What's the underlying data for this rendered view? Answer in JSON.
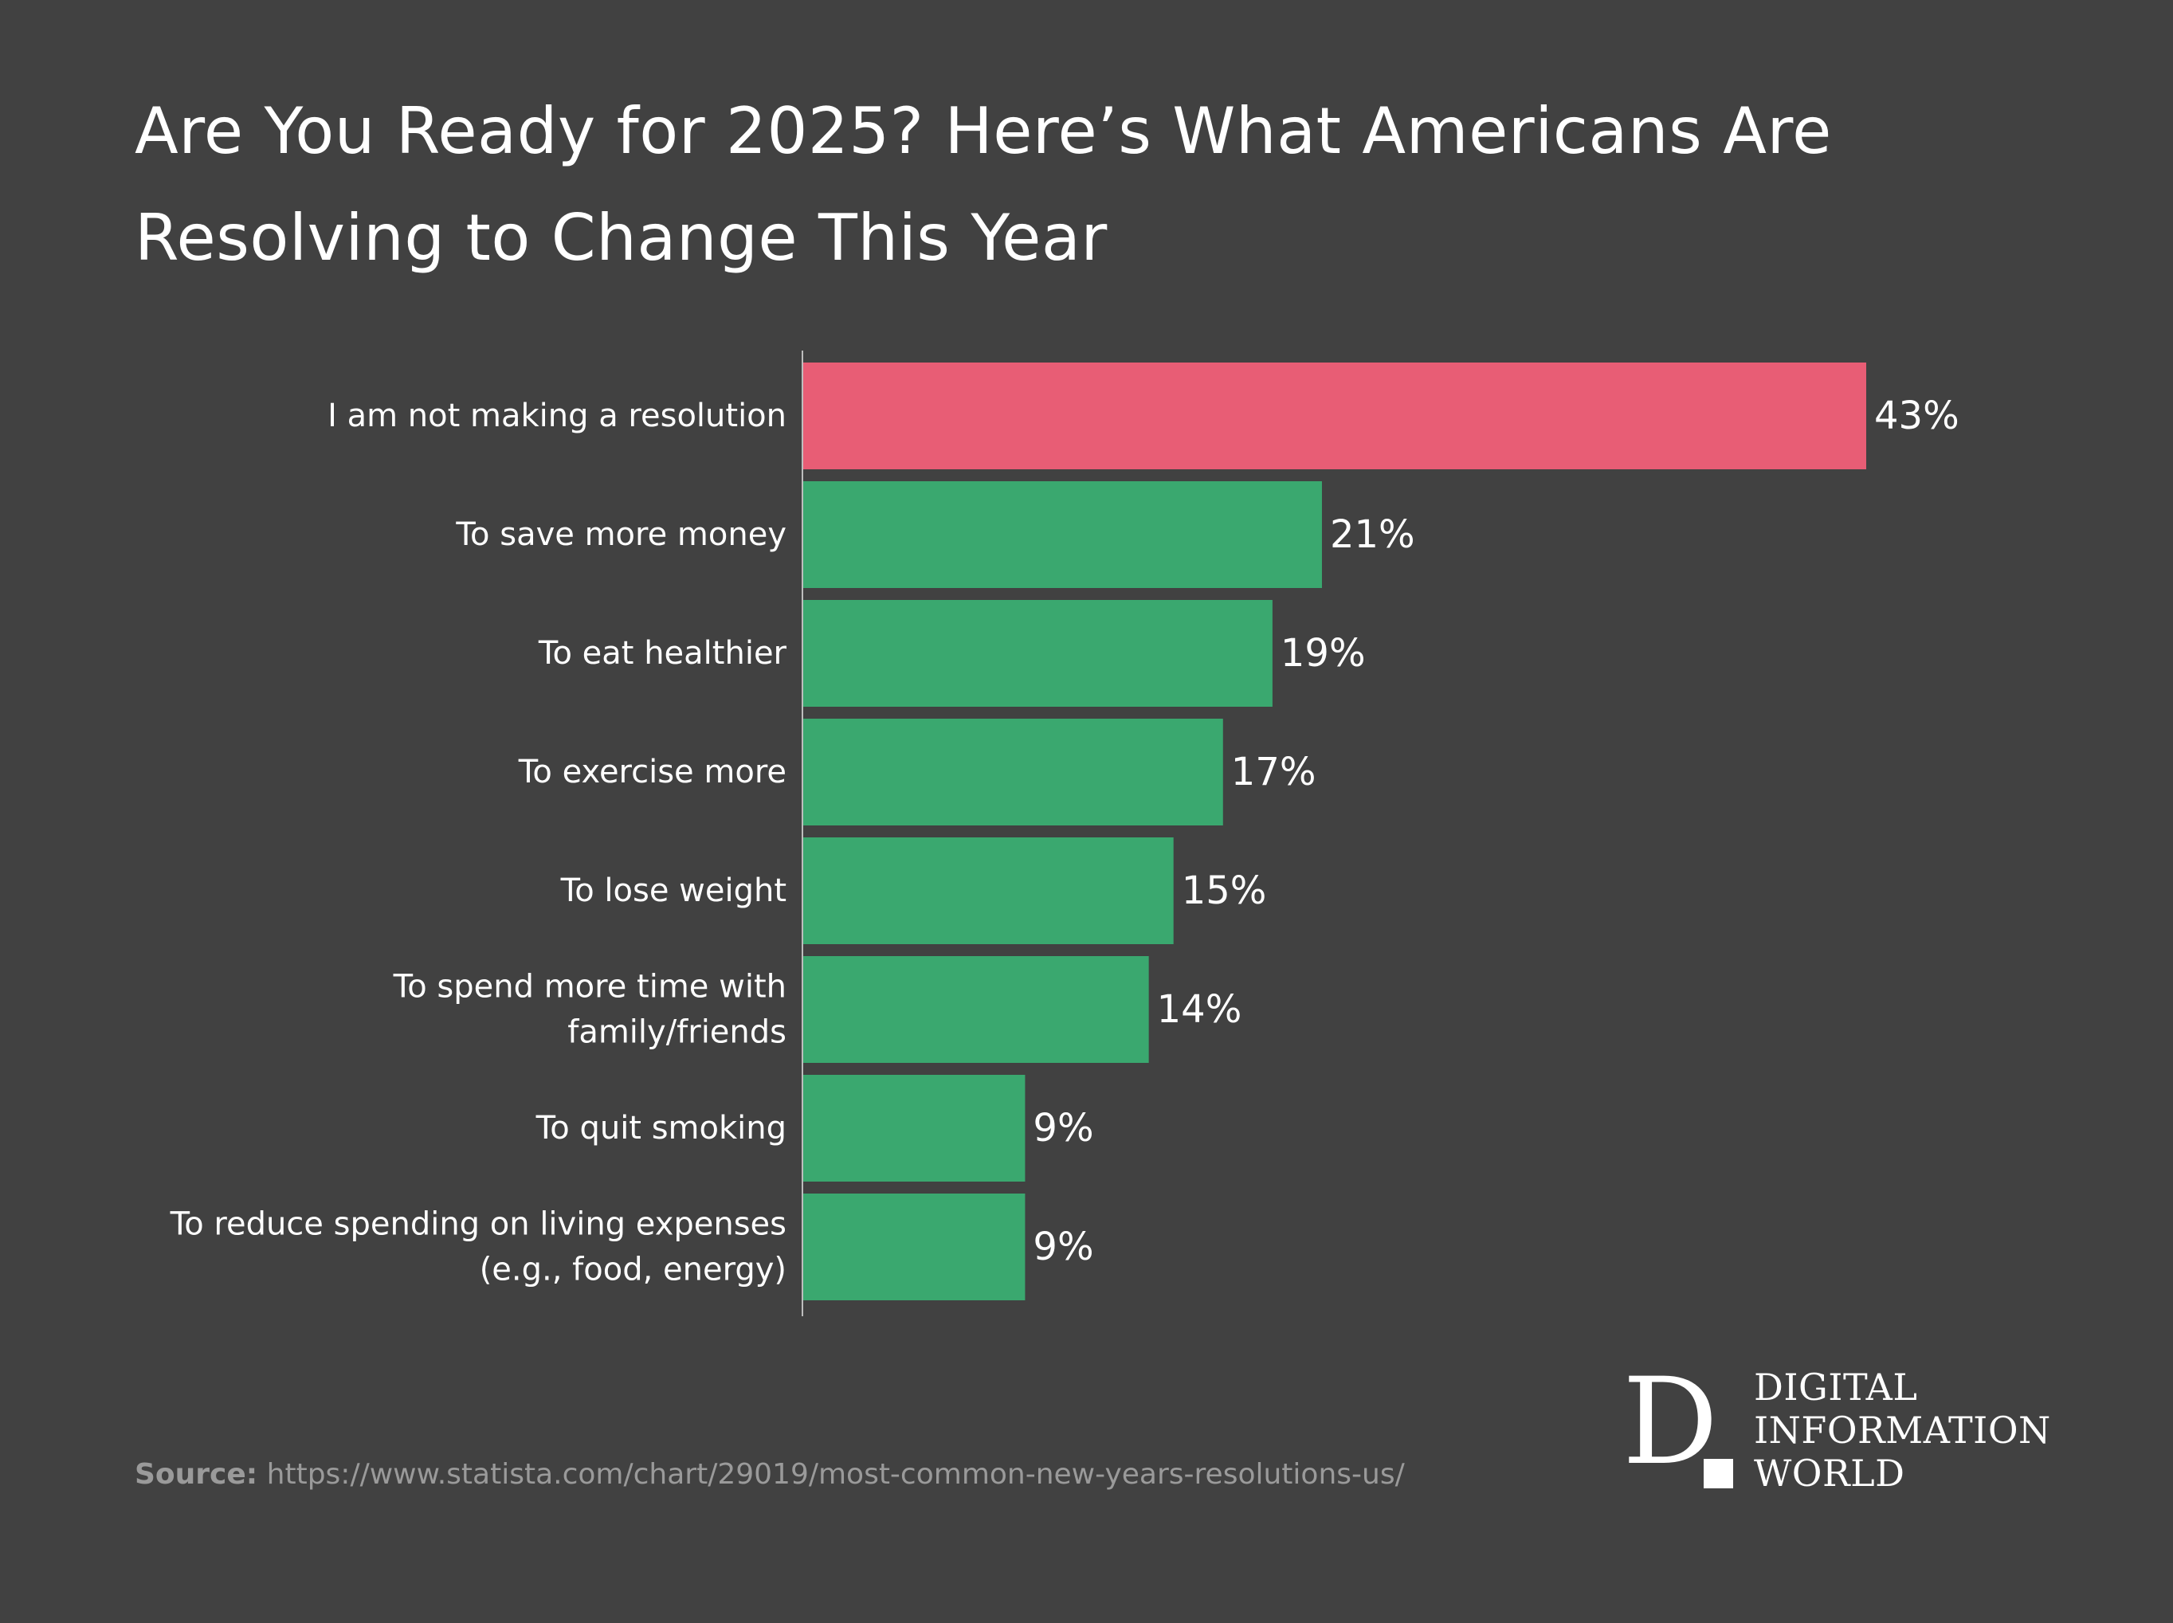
{
  "chart_data": {
    "type": "bar",
    "orientation": "horizontal",
    "title": "Are You Ready for 2025? Here’s What Americans Are Resolving to Change This Year",
    "categories": [
      [
        "I am not making a resolution"
      ],
      [
        "To save more money"
      ],
      [
        "To eat healthier"
      ],
      [
        "To exercise more"
      ],
      [
        "To lose weight"
      ],
      [
        "To spend more time with",
        "family/friends"
      ],
      [
        "To quit smoking"
      ],
      [
        "To reduce spending on living expenses",
        "(e.g., food, energy)"
      ]
    ],
    "values": [
      43,
      21,
      19,
      17,
      15,
      14,
      9,
      9
    ],
    "value_labels": [
      "43%",
      "21%",
      "19%",
      "17%",
      "15%",
      "14%",
      "9%",
      "9%"
    ],
    "unit": "%",
    "xlim": [
      0,
      43
    ],
    "colors": [
      "#e85d75",
      "#3aa86f",
      "#3aa86f",
      "#3aa86f",
      "#3aa86f",
      "#3aa86f",
      "#3aa86f",
      "#3aa86f"
    ],
    "axis_color": "#bdbdbd",
    "grid": false,
    "legend": "none"
  },
  "source": {
    "label": "Source:",
    "url": "https://www.statista.com/chart/29019/most-common-new-years-resolutions-us/"
  },
  "logo": {
    "mark": "D",
    "lines": [
      "DIGITAL",
      "INFORMATION",
      "WORLD"
    ]
  },
  "colors": {
    "background": "#414141",
    "highlight_bar": "#e85d75",
    "bar": "#3aa86f",
    "text": "#ffffff",
    "source_text": "#9a9a9a"
  }
}
